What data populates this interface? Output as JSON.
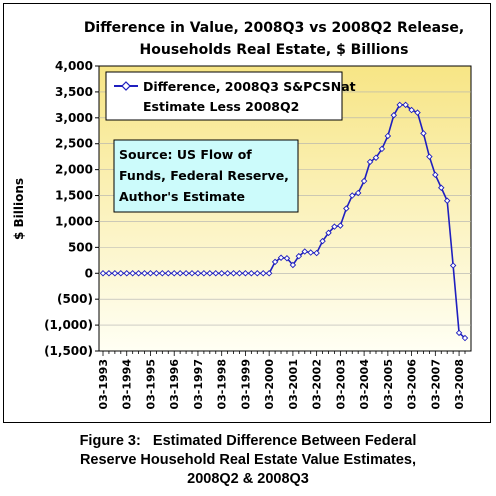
{
  "chart_data": {
    "type": "line",
    "title": [
      "Difference in Value, 2008Q3 vs 2008Q2 Release,",
      "Households Real Estate, $ Billions"
    ],
    "ylabel": "$ Billions",
    "ylim": [
      -1500,
      4000
    ],
    "yticks": [
      -1500,
      -1000,
      -500,
      0,
      500,
      1000,
      1500,
      2000,
      2500,
      3000,
      3500,
      4000
    ],
    "ytick_labels": [
      "(1,500)",
      "(1,000)",
      "(500)",
      "0",
      "500",
      "1,000",
      "1,500",
      "2,000",
      "2,500",
      "3,000",
      "3,500",
      "4,000"
    ],
    "xtick_labels": [
      "03-1993",
      "03-1994",
      "03-1995",
      "03-1996",
      "03-1997",
      "03-1998",
      "03-1999",
      "03-2000",
      "03-2001",
      "03-2002",
      "03-2003",
      "03-2004",
      "03-2005",
      "03-2006",
      "03-2007",
      "03-2008"
    ],
    "x_start": "03-1993",
    "x_frequency": "quarterly",
    "legend": {
      "position": "top-left",
      "lines": [
        "Difference, 2008Q3 S&PCSNat",
        "Estimate Less 2008Q2"
      ]
    },
    "annotation": {
      "lines": [
        "Source: US Flow of",
        "Funds, Federal Reserve,",
        "Author's Estimate"
      ]
    },
    "series": [
      {
        "name": "Difference, 2008Q3 S&PCSNat Estimate Less 2008Q2",
        "color": "#1f1fbf",
        "values": [
          0,
          0,
          0,
          0,
          0,
          0,
          0,
          0,
          0,
          0,
          0,
          0,
          0,
          0,
          0,
          0,
          0,
          0,
          0,
          0,
          0,
          0,
          0,
          0,
          0,
          0,
          0,
          0,
          0,
          220,
          300,
          290,
          160,
          330,
          420,
          400,
          390,
          620,
          780,
          900,
          920,
          1250,
          1500,
          1550,
          1780,
          2150,
          2230,
          2400,
          2650,
          3050,
          3250,
          3250,
          3150,
          3100,
          2700,
          2250,
          1900,
          1650,
          1400,
          150,
          -1150,
          -1250
        ]
      }
    ]
  },
  "caption": {
    "lines": [
      "Figure 3:   Estimated Difference Between Federal",
      "Reserve Household Real Estate Value Estimates,",
      "2008Q2 & 2008Q3"
    ]
  }
}
